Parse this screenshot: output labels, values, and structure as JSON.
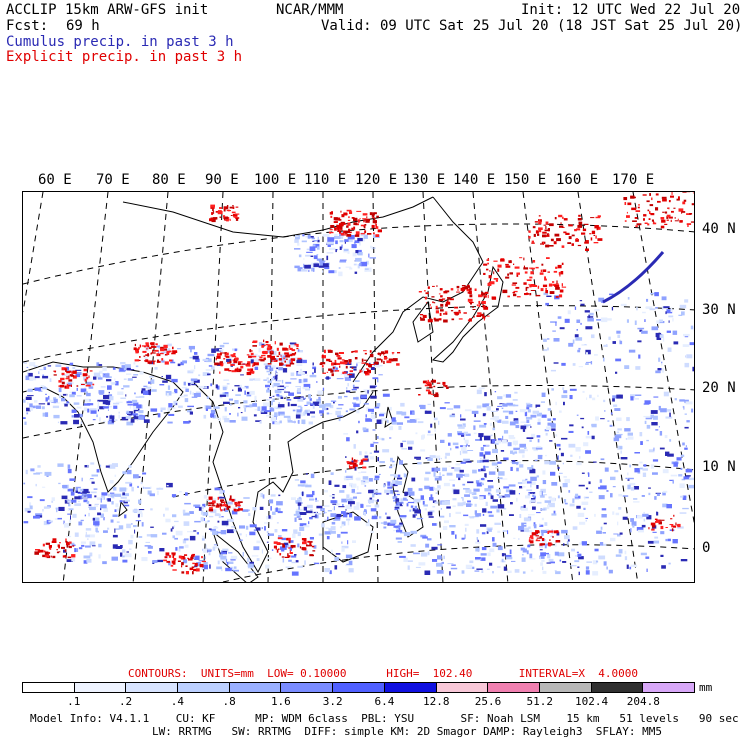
{
  "header": {
    "model_title": "ACCLIP 15km ARW-GFS init",
    "org": "NCAR/MMM",
    "init": "Init: 12 UTC Wed 22 Jul 20",
    "fcst_label": "Fcst:",
    "fcst_value": "69 h",
    "valid": "Valid: 09 UTC Sat 25 Jul 20 (18 JST Sat 25 Jul 20)",
    "cumulus_label": "Cumulus precip. in past 3 h",
    "explicit_label": "Explicit precip. in past 3 h"
  },
  "map": {
    "lon_labels": [
      "60 E",
      "70 E",
      "80 E",
      "90 E",
      "100 E",
      "110 E",
      "120 E",
      "130 E",
      "140 E",
      "150 E",
      "160 E",
      "170 E"
    ],
    "lat_labels": [
      "40 N",
      "30 N",
      "20 N",
      "10 N",
      "0"
    ]
  },
  "colors": {
    "cumulus": "#2a2ab4",
    "explicit": "#e00000",
    "coast": "#000000"
  },
  "legend": {
    "contours_line": "CONTOURS:  UNITS=mm  LOW= 0.10000      HIGH=  102.40       INTERVAL=X  4.0000",
    "units": "mm",
    "ticks": [
      ".1",
      ".2",
      ".4",
      ".8",
      "1.6",
      "3.2",
      "6.4",
      "12.8",
      "25.6",
      "51.2",
      "102.4",
      "204.8"
    ],
    "swatch_colors": [
      "#ffffff",
      "#eef3ff",
      "#d8e4ff",
      "#bcd0ff",
      "#9ab0ff",
      "#7a8cff",
      "#5060ff",
      "#1010e0",
      "#f8c8d8",
      "#f080b0",
      "#b8b8b8",
      "#303030",
      "#d8a8f8"
    ]
  },
  "footer": {
    "line1": "Model Info: V4.1.1    CU: KF      MP: WDM 6class  PBL: YSU       SF: Noah LSM    15 km   51 levels   90 sec",
    "line2": "LW: RRTMG   SW: RRTMG  DIFF: simple KM: 2D Smagor DAMP: Rayleigh3  SFLAY: MM5"
  }
}
